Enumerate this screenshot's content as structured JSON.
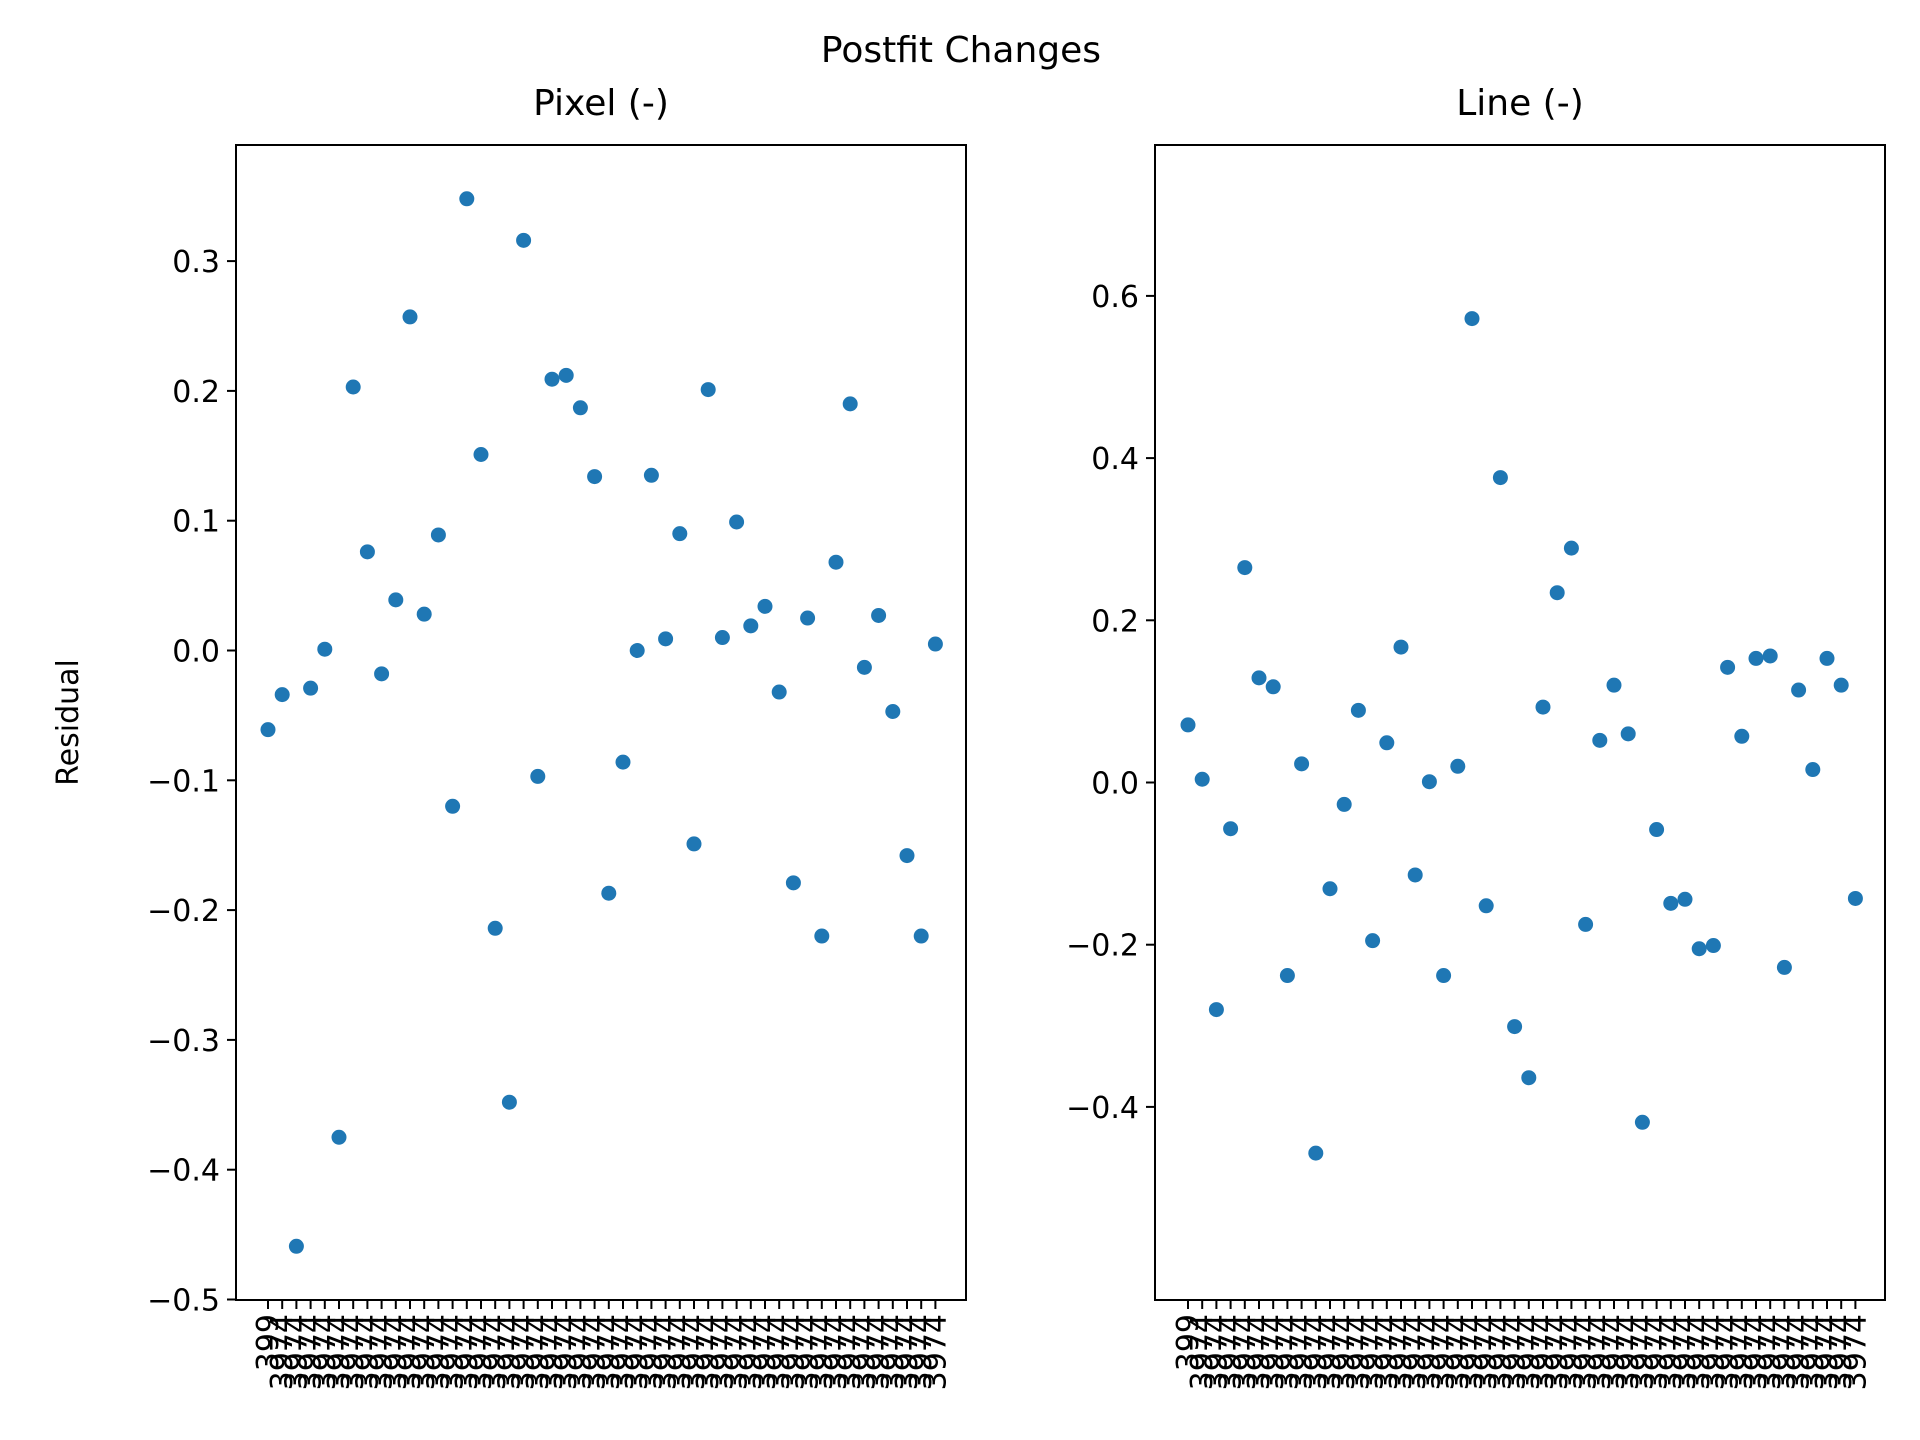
{
  "figure": {
    "suptitle": "Postfit Changes",
    "marker_color": "#1f77b4"
  },
  "chart_data": [
    {
      "type": "scatter",
      "title": "Pixel (-)",
      "xlabel": "",
      "ylabel": "Residual",
      "ylim": [
        -0.5,
        0.38
      ],
      "yticks": [
        -0.5,
        -0.4,
        -0.3,
        -0.2,
        -0.1,
        0.0,
        0.1,
        0.2,
        0.3
      ],
      "ytick_labels": [
        "−0.5",
        "−0.4",
        "−0.3",
        "−0.2",
        "−0.1",
        "0.0",
        "0.1",
        "0.2",
        "0.3"
      ],
      "grid": false,
      "x_tick_labels_note": "overlapping rotated labels; first label reads 399",
      "x_first_tick_label": "399",
      "x_last_tick_label": "3974",
      "values": [
        -0.061,
        -0.034,
        -0.459,
        -0.029,
        0.001,
        -0.375,
        0.203,
        0.076,
        -0.018,
        0.039,
        0.257,
        0.028,
        0.089,
        -0.12,
        0.348,
        0.151,
        -0.214,
        -0.348,
        0.316,
        -0.097,
        0.209,
        0.212,
        0.187,
        0.134,
        -0.187,
        -0.086,
        0.0,
        0.135,
        0.009,
        0.09,
        -0.149,
        0.201,
        0.01,
        0.099,
        0.019,
        0.034,
        -0.032,
        -0.179,
        0.025,
        -0.22,
        0.068,
        0.19,
        -0.013,
        0.027,
        -0.047,
        -0.158,
        -0.22,
        0.005
      ]
    },
    {
      "type": "scatter",
      "title": "Line (-)",
      "xlabel": "",
      "ylabel": "",
      "ylim": [
        -0.5,
        0.62
      ],
      "yticks": [
        -0.4,
        -0.2,
        0.0,
        0.2,
        0.4,
        0.6
      ],
      "ytick_labels": [
        "−0.4",
        "−0.2",
        "0.0",
        "0.2",
        "0.4",
        "0.6"
      ],
      "grid": false,
      "x_first_tick_label": "399",
      "x_last_tick_label": "3974",
      "values": [
        0.071,
        0.004,
        -0.28,
        -0.057,
        0.265,
        0.129,
        0.118,
        -0.238,
        0.023,
        -0.457,
        -0.131,
        -0.027,
        0.089,
        -0.195,
        0.049,
        0.167,
        -0.114,
        0.001,
        -0.238,
        0.02,
        0.572,
        -0.152,
        0.376,
        -0.301,
        -0.364,
        0.093,
        0.234,
        0.289,
        -0.175,
        0.052,
        0.12,
        0.06,
        -0.419,
        -0.058,
        -0.149,
        -0.144,
        -0.205,
        -0.201,
        0.142,
        0.057,
        0.153,
        0.156,
        -0.228,
        0.114,
        0.016,
        0.153,
        0.12,
        -0.143
      ]
    }
  ]
}
